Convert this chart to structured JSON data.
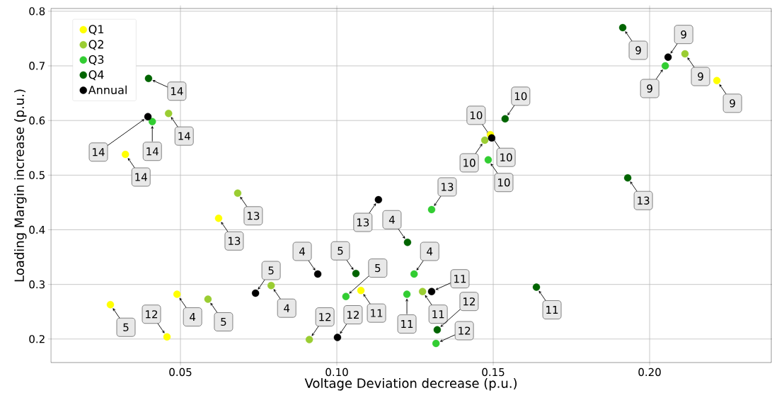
{
  "chart_data": {
    "type": "scatter",
    "xlabel": "Voltage Deviation decrease (p.u.)",
    "ylabel": "Loading Margin increase (p.u.)",
    "xlim": [
      0.0086,
      0.2389
    ],
    "ylim": [
      0.157,
      0.805
    ],
    "xticks": [
      {
        "value": 0.05,
        "label": "0.05"
      },
      {
        "value": 0.1,
        "label": "0.10"
      },
      {
        "value": 0.15,
        "label": "0.15"
      },
      {
        "value": 0.2,
        "label": "0.20"
      }
    ],
    "yticks": [
      0.2,
      0.3,
      0.4,
      0.5,
      0.6,
      0.7,
      0.8
    ],
    "grid": true,
    "legend": "top left",
    "series": [
      {
        "name": "Q1",
        "color": "#ffff00",
        "x": [
          0.0489,
          0.0276,
          0.2215,
          0.1491,
          0.1077,
          0.0457,
          0.0622,
          0.0324
        ],
        "values": [
          0.282,
          0.263,
          0.673,
          0.574,
          0.289,
          0.204,
          0.421,
          0.538
        ]
      },
      {
        "name": "Q2",
        "color": "#9acd32",
        "x": [
          0.079,
          0.0588,
          0.2113,
          0.1473,
          0.1274,
          0.0912,
          0.0683,
          0.0462
        ],
        "values": [
          0.298,
          0.273,
          0.722,
          0.564,
          0.287,
          0.199,
          0.467,
          0.613
        ]
      },
      {
        "name": "Q3",
        "color": "#32cd32",
        "x": [
          0.1247,
          0.1029,
          0.205,
          0.1484,
          0.1224,
          0.1317,
          0.1303,
          0.041
        ],
        "values": [
          0.319,
          0.278,
          0.7,
          0.528,
          0.282,
          0.192,
          0.437,
          0.598
        ]
      },
      {
        "name": "Q4",
        "color": "#006400",
        "x": [
          0.1226,
          0.1061,
          0.1914,
          0.1538,
          0.1638,
          0.1321,
          0.193,
          0.0398
        ],
        "values": [
          0.377,
          0.32,
          0.77,
          0.603,
          0.295,
          0.217,
          0.495,
          0.677
        ]
      },
      {
        "name": "Annual",
        "color": "#000000",
        "x": [
          0.0939,
          0.074,
          0.2059,
          0.1495,
          0.1303,
          0.1002,
          0.1133,
          0.0396
        ],
        "values": [
          0.319,
          0.284,
          0.716,
          0.568,
          0.287,
          0.203,
          0.455,
          0.607
        ]
      }
    ],
    "annotations": [
      {
        "text": "4",
        "x": 0.0489,
        "y": 0.282
      },
      {
        "text": "5",
        "x": 0.0276,
        "y": 0.263
      },
      {
        "text": "9",
        "x": 0.2215,
        "y": 0.673
      },
      {
        "text": "10",
        "x": 0.1491,
        "y": 0.574
      },
      {
        "text": "11",
        "x": 0.1077,
        "y": 0.289
      },
      {
        "text": "12",
        "x": 0.0457,
        "y": 0.204
      },
      {
        "text": "13",
        "x": 0.0622,
        "y": 0.421
      },
      {
        "text": "14",
        "x": 0.0324,
        "y": 0.538
      },
      {
        "text": "4",
        "x": 0.079,
        "y": 0.298
      },
      {
        "text": "5",
        "x": 0.0588,
        "y": 0.273
      },
      {
        "text": "9",
        "x": 0.2113,
        "y": 0.722
      },
      {
        "text": "10",
        "x": 0.1473,
        "y": 0.564
      },
      {
        "text": "11",
        "x": 0.1274,
        "y": 0.287
      },
      {
        "text": "12",
        "x": 0.0912,
        "y": 0.199
      },
      {
        "text": "13",
        "x": 0.0683,
        "y": 0.467
      },
      {
        "text": "14",
        "x": 0.0462,
        "y": 0.613
      },
      {
        "text": "4",
        "x": 0.1247,
        "y": 0.319
      },
      {
        "text": "5",
        "x": 0.1029,
        "y": 0.278
      },
      {
        "text": "9",
        "x": 0.205,
        "y": 0.7
      },
      {
        "text": "10",
        "x": 0.1484,
        "y": 0.528
      },
      {
        "text": "11",
        "x": 0.1224,
        "y": 0.282
      },
      {
        "text": "12",
        "x": 0.1317,
        "y": 0.192
      },
      {
        "text": "13",
        "x": 0.1303,
        "y": 0.437
      },
      {
        "text": "14",
        "x": 0.041,
        "y": 0.598
      },
      {
        "text": "4",
        "x": 0.1226,
        "y": 0.377
      },
      {
        "text": "5",
        "x": 0.1061,
        "y": 0.32
      },
      {
        "text": "9",
        "x": 0.1914,
        "y": 0.77
      },
      {
        "text": "10",
        "x": 0.1538,
        "y": 0.603
      },
      {
        "text": "11",
        "x": 0.1638,
        "y": 0.295
      },
      {
        "text": "12",
        "x": 0.1321,
        "y": 0.217
      },
      {
        "text": "13",
        "x": 0.193,
        "y": 0.495
      },
      {
        "text": "14",
        "x": 0.0398,
        "y": 0.677
      },
      {
        "text": "4",
        "x": 0.0939,
        "y": 0.319
      },
      {
        "text": "5",
        "x": 0.074,
        "y": 0.284
      },
      {
        "text": "9",
        "x": 0.2059,
        "y": 0.716
      },
      {
        "text": "10",
        "x": 0.1495,
        "y": 0.568
      },
      {
        "text": "11",
        "x": 0.1303,
        "y": 0.287
      },
      {
        "text": "12",
        "x": 0.1002,
        "y": 0.203
      },
      {
        "text": "13",
        "x": 0.1133,
        "y": 0.455
      },
      {
        "text": "14",
        "x": 0.0396,
        "y": 0.607
      }
    ]
  }
}
